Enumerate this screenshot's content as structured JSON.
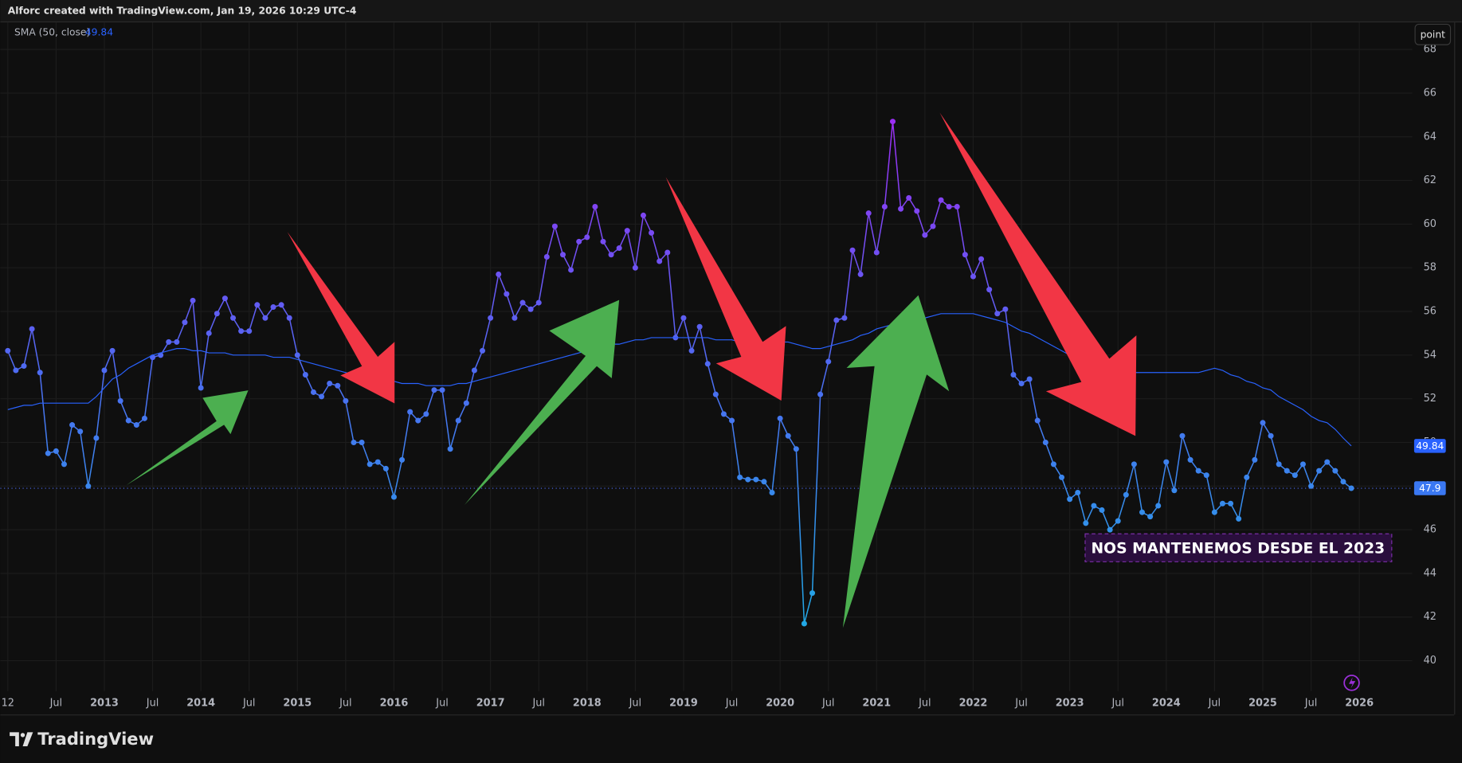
{
  "header": {
    "title": "Alforc created with TradingView.com, Jan 19, 2026 10:29 UTC-4"
  },
  "toolbar": {
    "button": "point"
  },
  "footer": {
    "brand": "TradingView"
  },
  "chart_data": {
    "type": "line",
    "grid": true,
    "x": [
      "2012-01",
      "2012-02",
      "2012-03",
      "2012-04",
      "2012-05",
      "2012-06",
      "2012-07",
      "2012-08",
      "2012-09",
      "2012-10",
      "2012-11",
      "2012-12",
      "2013-01",
      "2013-02",
      "2013-03",
      "2013-04",
      "2013-05",
      "2013-06",
      "2013-07",
      "2013-08",
      "2013-09",
      "2013-10",
      "2013-11",
      "2013-12",
      "2014-01",
      "2014-02",
      "2014-03",
      "2014-04",
      "2014-05",
      "2014-06",
      "2014-07",
      "2014-08",
      "2014-09",
      "2014-10",
      "2014-11",
      "2014-12",
      "2015-01",
      "2015-02",
      "2015-03",
      "2015-04",
      "2015-05",
      "2015-06",
      "2015-07",
      "2015-08",
      "2015-09",
      "2015-10",
      "2015-11",
      "2015-12",
      "2016-01",
      "2016-02",
      "2016-03",
      "2016-04",
      "2016-05",
      "2016-06",
      "2016-07",
      "2016-08",
      "2016-09",
      "2016-10",
      "2016-11",
      "2016-12",
      "2017-01",
      "2017-02",
      "2017-03",
      "2017-04",
      "2017-05",
      "2017-06",
      "2017-07",
      "2017-08",
      "2017-09",
      "2017-10",
      "2017-11",
      "2017-12",
      "2018-01",
      "2018-02",
      "2018-03",
      "2018-04",
      "2018-05",
      "2018-06",
      "2018-07",
      "2018-08",
      "2018-09",
      "2018-10",
      "2018-11",
      "2018-12",
      "2019-01",
      "2019-02",
      "2019-03",
      "2019-04",
      "2019-05",
      "2019-06",
      "2019-07",
      "2019-08",
      "2019-09",
      "2019-10",
      "2019-11",
      "2019-12",
      "2020-01",
      "2020-02",
      "2020-03",
      "2020-04",
      "2020-05",
      "2020-06",
      "2020-07",
      "2020-08",
      "2020-09",
      "2020-10",
      "2020-11",
      "2020-12",
      "2021-01",
      "2021-02",
      "2021-03",
      "2021-04",
      "2021-05",
      "2021-06",
      "2021-07",
      "2021-08",
      "2021-09",
      "2021-10",
      "2021-11",
      "2021-12",
      "2022-01",
      "2022-02",
      "2022-03",
      "2022-04",
      "2022-05",
      "2022-06",
      "2022-07",
      "2022-08",
      "2022-09",
      "2022-10",
      "2022-11",
      "2022-12",
      "2023-01",
      "2023-02",
      "2023-03",
      "2023-04",
      "2023-05",
      "2023-06",
      "2023-07",
      "2023-08",
      "2023-09",
      "2023-10",
      "2023-11",
      "2023-12",
      "2024-01",
      "2024-02",
      "2024-03",
      "2024-04",
      "2024-05",
      "2024-06",
      "2024-07",
      "2024-08",
      "2024-09",
      "2024-10",
      "2024-11",
      "2024-12",
      "2025-01",
      "2025-02",
      "2025-03",
      "2025-04",
      "2025-05",
      "2025-06",
      "2025-07",
      "2025-08",
      "2025-09",
      "2025-10",
      "2025-11",
      "2025-12"
    ],
    "series": [
      {
        "gradient": [
          "#22a8e6",
          "#4d6cf2",
          "#9b2ff4"
        ],
        "markers": true,
        "values": [
          54.2,
          53.3,
          53.5,
          55.2,
          53.2,
          49.5,
          49.6,
          49.0,
          50.8,
          50.5,
          48.0,
          50.2,
          53.3,
          54.2,
          51.9,
          51.0,
          50.8,
          51.1,
          53.9,
          54.0,
          54.6,
          54.6,
          55.5,
          56.5,
          52.5,
          55.0,
          55.9,
          56.6,
          55.7,
          55.1,
          55.1,
          56.3,
          55.7,
          56.2,
          56.3,
          55.7,
          54.0,
          53.1,
          52.3,
          52.1,
          52.7,
          52.6,
          51.9,
          50.0,
          50.0,
          49.0,
          49.1,
          48.8,
          47.5,
          49.2,
          51.4,
          51.0,
          51.3,
          52.4,
          52.4,
          49.7,
          51.0,
          51.8,
          53.3,
          54.2,
          55.7,
          57.7,
          56.8,
          55.7,
          56.4,
          56.1,
          56.4,
          58.5,
          59.9,
          58.6,
          57.9,
          59.2,
          59.4,
          60.8,
          59.2,
          58.6,
          58.9,
          59.7,
          58.0,
          60.4,
          59.6,
          58.3,
          58.7,
          54.8,
          55.7,
          54.2,
          55.3,
          53.6,
          52.2,
          51.3,
          51.0,
          48.4,
          48.3,
          48.3,
          48.2,
          47.7,
          51.1,
          50.3,
          49.7,
          41.7,
          43.1,
          52.2,
          53.7,
          55.6,
          55.7,
          58.8,
          57.7,
          60.5,
          58.7,
          60.8,
          64.7,
          60.7,
          61.2,
          60.6,
          59.5,
          59.9,
          61.1,
          60.8,
          60.8,
          58.6,
          57.6,
          58.4,
          57.0,
          55.9,
          56.1,
          53.1,
          52.7,
          52.9,
          51.0,
          50.0,
          49.0,
          48.4,
          47.4,
          47.7,
          46.3,
          47.1,
          46.9,
          46.0,
          46.4,
          47.6,
          49.0,
          46.8,
          46.6,
          47.1,
          49.1,
          47.8,
          50.3,
          49.2,
          48.7,
          48.5,
          46.8,
          47.2,
          47.2,
          46.5,
          48.4,
          49.2,
          50.9,
          50.3,
          49.0,
          48.7,
          48.5,
          49.0,
          48.0,
          48.7,
          49.1,
          48.7,
          48.2,
          47.9
        ]
      },
      {
        "name": "SMA (50, close)",
        "color": "#2962ff",
        "values": [
          51.5,
          51.6,
          51.7,
          51.7,
          51.8,
          51.8,
          51.8,
          51.8,
          51.8,
          51.8,
          51.8,
          52.1,
          52.5,
          52.9,
          53.1,
          53.4,
          53.6,
          53.8,
          54.0,
          54.1,
          54.2,
          54.3,
          54.3,
          54.2,
          54.2,
          54.1,
          54.1,
          54.1,
          54.0,
          54.0,
          54.0,
          54.0,
          54.0,
          53.9,
          53.9,
          53.9,
          53.8,
          53.7,
          53.6,
          53.5,
          53.4,
          53.3,
          53.2,
          53.1,
          53.0,
          53.0,
          52.9,
          52.8,
          52.8,
          52.7,
          52.7,
          52.7,
          52.6,
          52.6,
          52.6,
          52.6,
          52.7,
          52.7,
          52.8,
          52.9,
          53.0,
          53.1,
          53.2,
          53.3,
          53.4,
          53.5,
          53.6,
          53.7,
          53.8,
          53.9,
          54.0,
          54.1,
          54.2,
          54.3,
          54.4,
          54.5,
          54.5,
          54.6,
          54.7,
          54.7,
          54.8,
          54.8,
          54.8,
          54.8,
          54.8,
          54.8,
          54.8,
          54.8,
          54.7,
          54.7,
          54.7,
          54.6,
          54.6,
          54.5,
          54.5,
          54.5,
          54.6,
          54.6,
          54.5,
          54.4,
          54.3,
          54.3,
          54.4,
          54.5,
          54.6,
          54.7,
          54.9,
          55.0,
          55.2,
          55.3,
          55.4,
          55.5,
          55.6,
          55.7,
          55.7,
          55.8,
          55.9,
          55.9,
          55.9,
          55.9,
          55.9,
          55.8,
          55.7,
          55.6,
          55.5,
          55.3,
          55.1,
          55.0,
          54.8,
          54.6,
          54.4,
          54.2,
          54.0,
          53.9,
          53.7,
          53.6,
          53.5,
          53.4,
          53.3,
          53.3,
          53.2,
          53.2,
          53.2,
          53.2,
          53.2,
          53.2,
          53.2,
          53.2,
          53.2,
          53.3,
          53.4,
          53.3,
          53.1,
          53.0,
          52.8,
          52.7,
          52.5,
          52.4,
          52.1,
          51.9,
          51.7,
          51.5,
          51.2,
          51.0,
          50.9,
          50.6,
          50.2,
          49.84
        ]
      }
    ],
    "xlim": [
      "2012-01",
      "2026-07"
    ],
    "xticks": [
      {
        "value": "2012-01",
        "label": "12"
      },
      {
        "value": "2012-07",
        "label": "Jul"
      },
      {
        "value": "2013-01",
        "label": "2013"
      },
      {
        "value": "2013-07",
        "label": "Jul"
      },
      {
        "value": "2014-01",
        "label": "2014"
      },
      {
        "value": "2014-07",
        "label": "Jul"
      },
      {
        "value": "2015-01",
        "label": "2015"
      },
      {
        "value": "2015-07",
        "label": "Jul"
      },
      {
        "value": "2016-01",
        "label": "2016"
      },
      {
        "value": "2016-07",
        "label": "Jul"
      },
      {
        "value": "2017-01",
        "label": "2017"
      },
      {
        "value": "2017-07",
        "label": "Jul"
      },
      {
        "value": "2018-01",
        "label": "2018"
      },
      {
        "value": "2018-07",
        "label": "Jul"
      },
      {
        "value": "2019-01",
        "label": "2019"
      },
      {
        "value": "2019-07",
        "label": "Jul"
      },
      {
        "value": "2020-01",
        "label": "2020"
      },
      {
        "value": "2020-07",
        "label": "Jul"
      },
      {
        "value": "2021-01",
        "label": "2021"
      },
      {
        "value": "2021-07",
        "label": "Jul"
      },
      {
        "value": "2022-01",
        "label": "2022"
      },
      {
        "value": "2022-07",
        "label": "Jul"
      },
      {
        "value": "2023-01",
        "label": "2023"
      },
      {
        "value": "2023-07",
        "label": "Jul"
      },
      {
        "value": "2024-01",
        "label": "2024"
      },
      {
        "value": "2024-07",
        "label": "Jul"
      },
      {
        "value": "2025-01",
        "label": "2025"
      },
      {
        "value": "2025-07",
        "label": "Jul"
      },
      {
        "value": "2026-01",
        "label": "2026"
      }
    ],
    "ylim": [
      38.6,
      69.2
    ],
    "yticks": [
      40,
      42,
      44,
      46,
      48,
      50,
      52,
      54,
      56,
      58,
      60,
      62,
      64,
      66,
      68
    ],
    "annotations": [
      "NOS MANTENEMOS DESDE EL 2023"
    ]
  }
}
